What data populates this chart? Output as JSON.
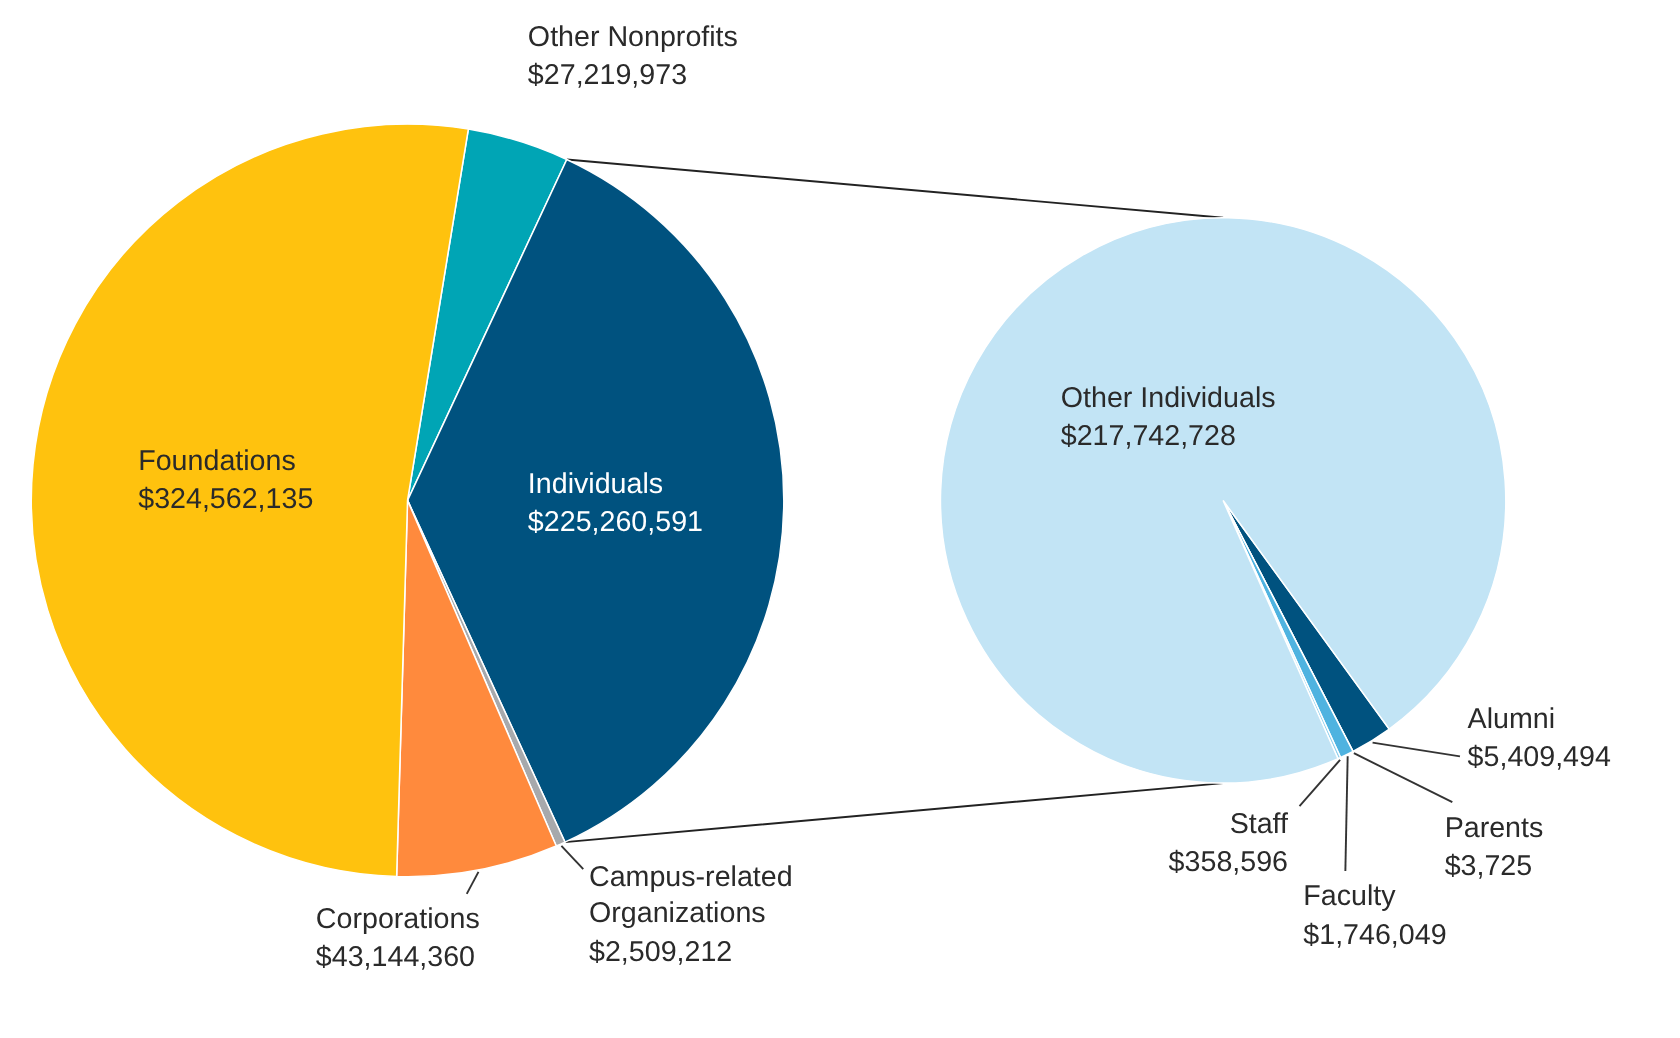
{
  "chart_data": [
    {
      "type": "pie",
      "categories": [
        "Other Nonprofits",
        "Individuals",
        "Campus-related Organizations",
        "Corporations",
        "Foundations"
      ],
      "values": [
        27219973,
        225260591,
        2509212,
        43144360,
        324562135
      ],
      "colors": [
        "#00a5b5",
        "#00527f",
        "#a7a9ac",
        "#ff8a3d",
        "#ffc20e"
      ],
      "value_labels": [
        "$27,219,973",
        "$225,260,591",
        "$2,509,212",
        "$43,144,360",
        "$324,562,135"
      ]
    },
    {
      "type": "pie",
      "categories": [
        "Alumni",
        "Parents",
        "Faculty",
        "Staff",
        "Other Individuals"
      ],
      "values": [
        5409494,
        3725,
        1746049,
        358596,
        217742728
      ],
      "colors": [
        "#00527f",
        "#0082b4",
        "#4fb3e0",
        "#8fd0ee",
        "#c2e4f5"
      ],
      "value_labels": [
        "$5,409,494",
        "$3,725",
        "$1,746,049",
        "$358,596",
        "$217,742,728"
      ]
    }
  ]
}
